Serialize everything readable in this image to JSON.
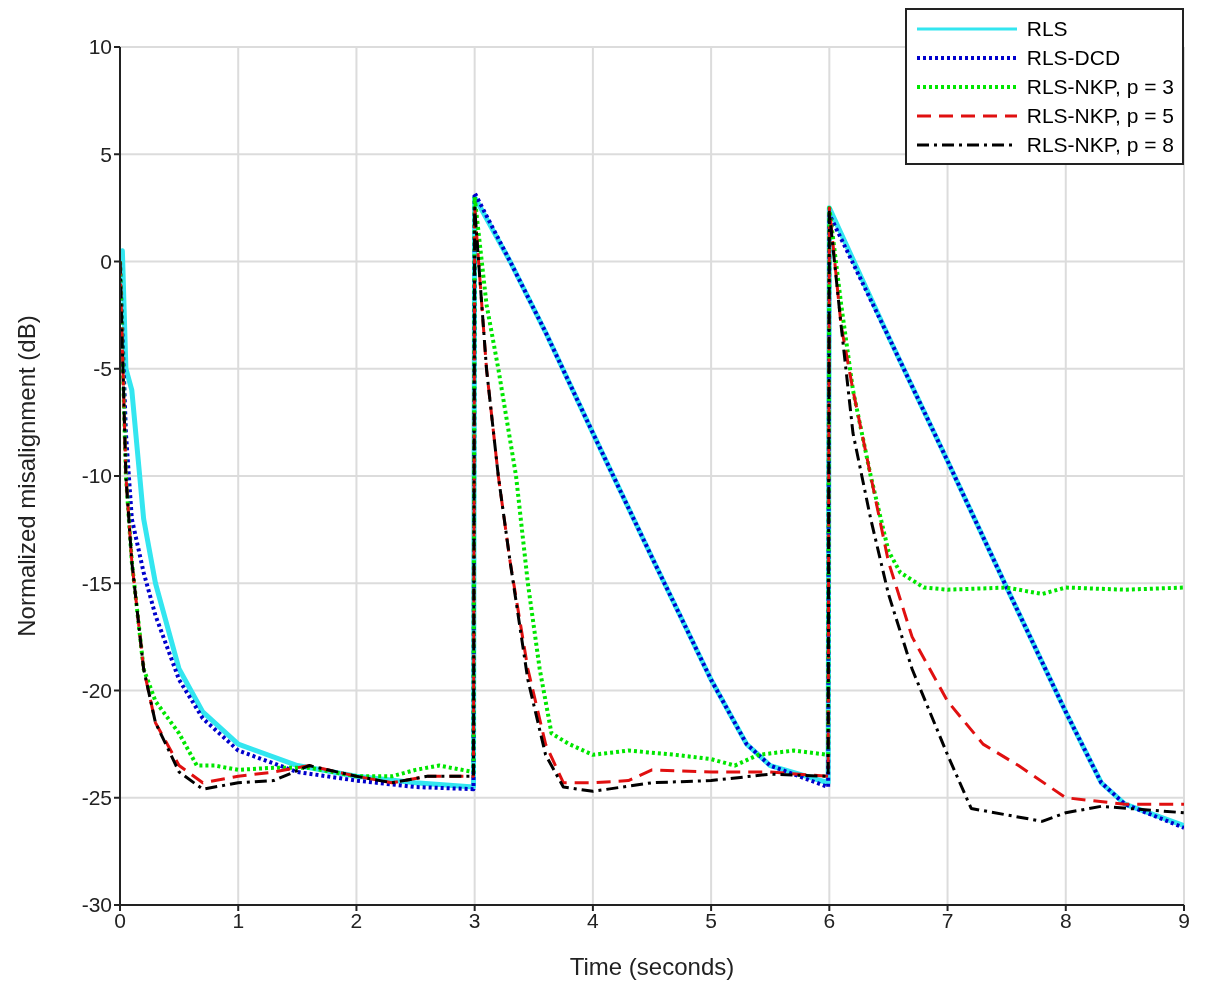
{
  "chart_data": {
    "type": "line",
    "xlabel": "Time (seconds)",
    "ylabel": "Normalized misalignment (dB)",
    "xlim": [
      0,
      9
    ],
    "xticks": [
      0,
      1,
      2,
      3,
      4,
      5,
      6,
      7,
      8,
      9
    ],
    "ylim": [
      -30,
      10
    ],
    "yticks": [
      -30,
      -25,
      -20,
      -15,
      -10,
      -5,
      0,
      5,
      10
    ],
    "grid": true,
    "legend": "top right",
    "marker": "none",
    "series": [
      {
        "name": "RLS",
        "color": "#33e6f0",
        "line_style": "solid",
        "x": [
          0,
          0.02,
          0.05,
          0.1,
          0.2,
          0.3,
          0.5,
          0.7,
          1,
          1.5,
          2,
          2.5,
          2.99,
          3,
          3.3,
          3.6,
          4,
          4.5,
          5,
          5.3,
          5.5,
          5.99,
          6,
          6.5,
          7,
          7.5,
          8,
          8.3,
          8.5,
          9
        ],
        "values": [
          0,
          0.5,
          -5,
          -6,
          -12,
          -15,
          -19,
          -21,
          -22.5,
          -23.5,
          -24,
          -24.3,
          -24.5,
          3,
          0,
          -3.3,
          -8,
          -13.8,
          -19.5,
          -22.5,
          -23.5,
          -24.3,
          2.5,
          -3.5,
          -9.3,
          -15.2,
          -21,
          -24.3,
          -25.3,
          -26.3
        ]
      },
      {
        "name": "RLS-DCD",
        "color": "#0000cc",
        "line_style": "dotted",
        "x": [
          0,
          0.05,
          0.1,
          0.2,
          0.3,
          0.5,
          0.7,
          1,
          1.5,
          2,
          2.5,
          2.99,
          3,
          3.3,
          3.6,
          4,
          4.5,
          5,
          5.3,
          5.5,
          5.99,
          6,
          6.5,
          7,
          7.5,
          8,
          8.3,
          8.5,
          9
        ],
        "values": [
          0,
          -8,
          -12,
          -14.5,
          -16.5,
          -19.5,
          -21.3,
          -22.8,
          -23.8,
          -24.2,
          -24.5,
          -24.6,
          3.2,
          0,
          -3.3,
          -8,
          -13.8,
          -19.5,
          -22.5,
          -23.5,
          -24.5,
          2.2,
          -3.5,
          -9.3,
          -15.2,
          -21,
          -24.3,
          -25.3,
          -26.4
        ]
      },
      {
        "name": "RLS-NKP, p = 3",
        "color": "#00e600",
        "line_style": "dotted",
        "x": [
          0,
          0.05,
          0.1,
          0.2,
          0.3,
          0.5,
          0.65,
          0.8,
          1,
          1.3,
          1.6,
          1.8,
          2,
          2.3,
          2.5,
          2.7,
          2.99,
          3,
          3.1,
          3.2,
          3.35,
          3.45,
          3.55,
          3.65,
          3.8,
          4,
          4.3,
          4.7,
          5,
          5.2,
          5.4,
          5.7,
          5.99,
          6,
          6.1,
          6.2,
          6.35,
          6.5,
          6.6,
          6.8,
          7,
          7.5,
          7.8,
          8,
          8.5,
          9
        ],
        "values": [
          0,
          -10,
          -14,
          -19,
          -20.5,
          -22,
          -23.5,
          -23.5,
          -23.7,
          -23.6,
          -23.6,
          -23.8,
          -24,
          -24,
          -23.7,
          -23.5,
          -23.8,
          3,
          -2,
          -5,
          -10,
          -15,
          -19,
          -22,
          -22.5,
          -23,
          -22.8,
          -23,
          -23.2,
          -23.5,
          -23,
          -22.8,
          -23,
          2.5,
          -2,
          -6,
          -10,
          -13.5,
          -14.5,
          -15.2,
          -15.3,
          -15.2,
          -15.5,
          -15.2,
          -15.3,
          -15.2
        ]
      },
      {
        "name": "RLS-NKP, p = 5",
        "color": "#e01010",
        "line_style": "dashed",
        "x": [
          0,
          0.05,
          0.1,
          0.2,
          0.3,
          0.5,
          0.7,
          1,
          1.3,
          1.6,
          2,
          2.3,
          2.6,
          2.99,
          3,
          3.1,
          3.2,
          3.3,
          3.45,
          3.6,
          3.75,
          4,
          4.3,
          4.5,
          5,
          5.5,
          5.99,
          6,
          6.1,
          6.2,
          6.35,
          6.5,
          6.7,
          7,
          7.3,
          7.6,
          8,
          8.5,
          9
        ],
        "values": [
          0,
          -10,
          -14,
          -19,
          -21.5,
          -23.5,
          -24.3,
          -24,
          -23.8,
          -23.5,
          -24,
          -24.3,
          -24,
          -24,
          2.5,
          -5,
          -10,
          -14,
          -19,
          -22.5,
          -24.3,
          -24.3,
          -24.2,
          -23.7,
          -23.8,
          -23.8,
          -24,
          2.5,
          -3,
          -6,
          -10,
          -14,
          -17.5,
          -20.5,
          -22.5,
          -23.5,
          -25,
          -25.3,
          -25.3
        ]
      },
      {
        "name": "RLS-NKP, p = 8",
        "color": "#000000",
        "line_style": "dashdot",
        "x": [
          0,
          0.05,
          0.1,
          0.2,
          0.3,
          0.5,
          0.7,
          1,
          1.3,
          1.6,
          2,
          2.3,
          2.6,
          2.99,
          3,
          3.1,
          3.2,
          3.3,
          3.45,
          3.6,
          3.75,
          4,
          4.5,
          5,
          5.5,
          5.99,
          6,
          6.1,
          6.2,
          6.35,
          6.5,
          6.7,
          7,
          7.2,
          7.5,
          7.8,
          8,
          8.3,
          9
        ],
        "values": [
          0,
          -10,
          -14,
          -19,
          -21.5,
          -23.8,
          -24.6,
          -24.3,
          -24.2,
          -23.5,
          -24,
          -24.3,
          -24,
          -24,
          2.5,
          -5,
          -10,
          -14,
          -19.5,
          -23,
          -24.5,
          -24.7,
          -24.3,
          -24.2,
          -23.9,
          -24,
          2.3,
          -3,
          -8,
          -12,
          -15.5,
          -19,
          -23,
          -25.5,
          -25.8,
          -26.1,
          -25.7,
          -25.4,
          -25.7
        ]
      }
    ]
  }
}
